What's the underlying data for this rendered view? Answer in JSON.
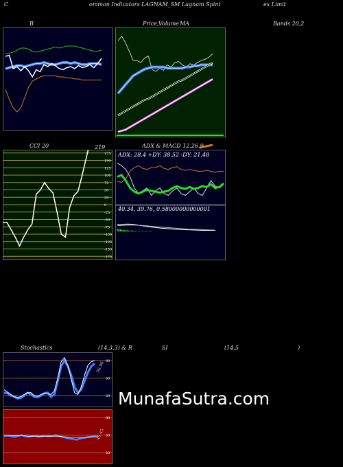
{
  "header": {
    "c": "C",
    "main": "ommon  Indicators LAGNAM_SM Lagnam Spint",
    "right": "ex Limit"
  },
  "labels": {
    "b": "B",
    "price": "Price,",
    "volume": "Volume",
    "ma": "MA",
    "bands": "Bands 20,2",
    "cci": "CCI 20",
    "cci_value": "219",
    "adx_title": "ADX  & MACD 12,26,9",
    "stoch_left": "Stochastics",
    "stoch_mid": "(14,3,3) & R",
    "stoch_si": "SI",
    "stoch_paren": "(14,5",
    "stoch_close": ")"
  },
  "watermark": "MunafaSutra.com",
  "colors": {
    "navy": "#000022",
    "green_bg": "#002200",
    "red_bg": "#8b0000",
    "blue": "#3f86ff",
    "orange": "#d2781e"
  },
  "chart_data": [
    {
      "type": "line",
      "name": "bollinger-bands",
      "series": [
        {
          "values": [
            75,
            75,
            76,
            78,
            80,
            80,
            79,
            77,
            76,
            77,
            78,
            79,
            80,
            81,
            80,
            81,
            82,
            82,
            82,
            81,
            80,
            79,
            78,
            77,
            77,
            78
          ]
        },
        {
          "values": [
            60,
            61,
            62,
            63,
            63,
            62,
            63,
            64,
            65,
            65,
            66,
            65,
            64,
            64,
            65,
            66,
            66,
            65,
            66,
            65,
            64,
            64,
            65,
            65,
            65,
            64
          ]
        },
        {
          "values": [
            40,
            30,
            22,
            18,
            22,
            32,
            42,
            48,
            50,
            52,
            53,
            53,
            53,
            53,
            52,
            52,
            51,
            51,
            50,
            50,
            49,
            49,
            49,
            49,
            49,
            49
          ]
        },
        {
          "values": [
            72,
            73,
            60,
            62,
            58,
            62,
            58,
            52,
            59,
            57,
            64,
            62,
            65,
            63,
            60,
            59,
            61,
            62,
            60,
            63,
            61,
            62,
            64,
            61,
            65,
            70
          ]
        }
      ]
    },
    {
      "type": "line",
      "name": "price-volume-ma",
      "series": [
        {
          "values": [
            88,
            92,
            86,
            78,
            70,
            70,
            68,
            72,
            74,
            62,
            60,
            63,
            61,
            66,
            64,
            68,
            69,
            66,
            64,
            67,
            66,
            68,
            70,
            71,
            73,
            76
          ]
        },
        {
          "values": [
            40,
            44,
            48,
            52,
            56,
            58,
            60,
            62,
            63,
            64,
            64,
            64,
            64,
            63,
            63,
            63,
            63,
            63,
            64,
            64,
            65,
            65,
            66,
            66,
            66,
            66
          ]
        },
        {
          "values": [
            20,
            22,
            24,
            26,
            28,
            30,
            32,
            34,
            35,
            37,
            39,
            41,
            43,
            45,
            47,
            49,
            51,
            52,
            54,
            56,
            58,
            60,
            62,
            64,
            66,
            68
          ]
        },
        {
          "values": [
            5,
            6,
            7,
            9,
            11,
            13,
            15,
            17,
            19,
            21,
            23,
            25,
            27,
            29,
            31,
            33,
            35,
            37,
            39,
            41,
            43,
            45,
            47,
            49,
            51,
            53
          ]
        }
      ]
    },
    {
      "type": "line",
      "name": "cci",
      "y_ticks": [
        175,
        150,
        125,
        100,
        75,
        50,
        25,
        0,
        -25,
        -50,
        -75,
        -100,
        -125,
        -150,
        -175
      ],
      "values": [
        -60,
        -60,
        -85,
        -110,
        -140,
        -110,
        -85,
        -65,
        35,
        50,
        75,
        55,
        40,
        -25,
        -100,
        -110,
        -10,
        30,
        45,
        100,
        160,
        219
      ]
    },
    {
      "type": "line",
      "name": "adx",
      "series": [
        {
          "values": [
            30,
            32,
            26,
            18,
            14,
            12,
            14,
            16,
            15,
            14,
            13,
            14,
            15,
            18,
            20,
            18,
            17,
            19,
            17,
            18,
            20,
            19,
            22,
            18,
            19,
            23
          ]
        },
        {
          "values": [
            25,
            24,
            28,
            36,
            40,
            42,
            39,
            38,
            40,
            40,
            42,
            39,
            38,
            40,
            41,
            38,
            37,
            38,
            37,
            36,
            36,
            37,
            36,
            35,
            36,
            36
          ]
        },
        {
          "values": [
            45,
            42,
            38,
            30,
            18,
            12,
            15,
            18,
            10,
            15,
            18,
            12,
            10,
            15,
            18,
            12,
            10,
            14,
            18,
            12,
            10,
            18,
            26,
            20,
            18,
            22
          ]
        }
      ]
    },
    {
      "type": "line",
      "name": "macd",
      "series": [
        {
          "values": [
            0.34,
            0.35,
            0.36,
            0.34,
            0.3,
            0.26,
            0.22,
            0.19,
            0.16,
            0.14,
            0.12,
            0.1,
            0.09,
            0.08,
            0.07,
            0.06,
            0.05,
            0.05,
            0.05
          ]
        },
        {
          "values": [
            0.28,
            0.29,
            0.31,
            0.31,
            0.3,
            0.28,
            0.26,
            0.23,
            0.21,
            0.19,
            0.17,
            0.15,
            0.13,
            0.11,
            0.1,
            0.09,
            0.08,
            0.07,
            0.06
          ]
        }
      ],
      "histogram": [
        0.06,
        0.06,
        0.05,
        0.04,
        0.04,
        0.03,
        0.03,
        0.03,
        0.02,
        0.02,
        0.02,
        0.02,
        0.02,
        0.01,
        0.01,
        0.01,
        0.01,
        0.01,
        0.01,
        0.01,
        0.01,
        0.01,
        0.01,
        0.01,
        0.01,
        0.01
      ]
    },
    {
      "type": "line",
      "name": "stochastics",
      "y_ticks": [
        80,
        50,
        20
      ],
      "series": [
        {
          "values": [
            25,
            24,
            20,
            18,
            15,
            16,
            20,
            25,
            22,
            18,
            17,
            20,
            24,
            25,
            18,
            22,
            45,
            70,
            80,
            70,
            55,
            35,
            25,
            30,
            45,
            60,
            70,
            75
          ]
        },
        {
          "values": [
            30,
            26,
            22,
            18,
            17,
            18,
            22,
            25,
            25,
            20,
            19,
            22,
            24,
            23,
            22,
            28,
            50,
            78,
            85,
            72,
            48,
            25,
            22,
            35,
            55,
            72,
            78,
            80
          ]
        }
      ]
    },
    {
      "type": "line",
      "name": "rsi",
      "y_ticks": [
        80,
        50,
        20
      ],
      "series": [
        {
          "values": [
            48,
            49,
            48,
            47,
            48,
            50,
            48,
            47,
            48,
            49,
            47,
            48,
            49,
            48,
            49,
            50,
            48,
            47,
            45,
            44,
            43,
            42,
            44,
            45,
            46,
            47,
            48,
            49
          ]
        },
        {
          "values": [
            50,
            50,
            49,
            49,
            49,
            49,
            49,
            48,
            48,
            48,
            48,
            48,
            48,
            48,
            48,
            48,
            48,
            47,
            47,
            46,
            46,
            46,
            46,
            46,
            47,
            47,
            47,
            47
          ]
        }
      ]
    }
  ]
}
